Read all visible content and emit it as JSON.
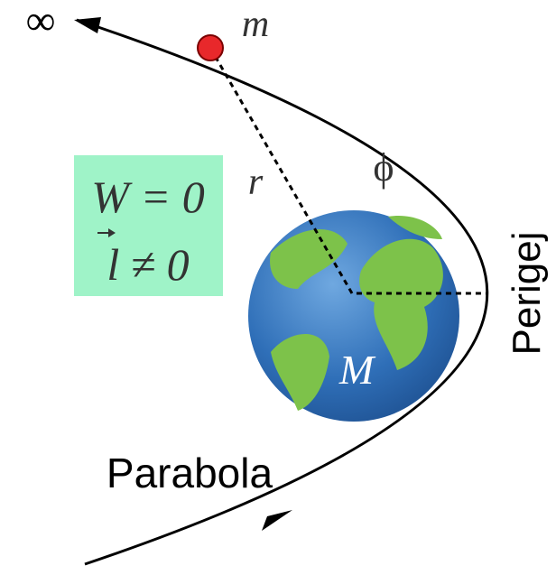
{
  "labels": {
    "infinity": "∞",
    "mass": "m",
    "radius": "r",
    "angle": "ϕ",
    "energy": "W = 0",
    "momentum": "l ≠ 0",
    "central_mass": "M",
    "perigee": "Perigej",
    "curve": "Parabola"
  }
}
